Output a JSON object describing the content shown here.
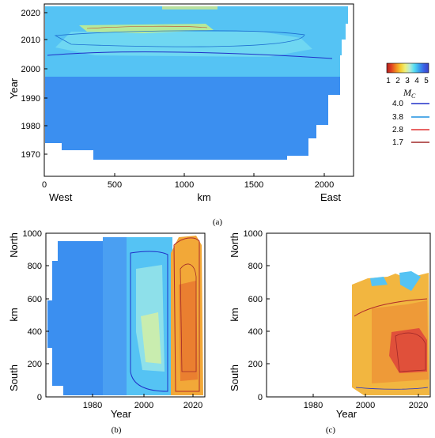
{
  "colorbar": {
    "ticks": [
      "1",
      "2",
      "3",
      "4",
      "5"
    ],
    "title_main": "M",
    "title_sub": "C",
    "stops": [
      "#b02020",
      "#e04020",
      "#f08a20",
      "#f6cc30",
      "#ecf07a",
      "#b6ecd6",
      "#52dcf2",
      "#3aa0ee",
      "#3a64e6",
      "#3c40c8"
    ]
  },
  "contour_legend": [
    {
      "label": "4.0",
      "color": "#2030c8"
    },
    {
      "label": "3.8",
      "color": "#1e90e0"
    },
    {
      "label": "2.8",
      "color": "#e03030"
    },
    {
      "label": "1.7",
      "color": "#a02828"
    }
  ],
  "chart_data": [
    {
      "type": "heatmap",
      "caption": "(a)",
      "xlabel": "km",
      "ylabel": "Year",
      "x_ticks": [
        "0",
        "500",
        "1000",
        "1500",
        "2000"
      ],
      "y_ticks": [
        "1970",
        "1980",
        "1990",
        "2000",
        "2010",
        "2020"
      ],
      "xlim": [
        0,
        2200
      ],
      "ylim": [
        1962,
        2024
      ],
      "annotations": [
        "West",
        "East"
      ],
      "color_encodes": "Mc",
      "regions": [
        {
          "x": [
            0,
            2200
          ],
          "y": [
            1967,
            1997
          ],
          "mc": 4.5
        },
        {
          "x": [
            0,
            2200
          ],
          "y": [
            1997,
            2024
          ],
          "mc": 3.9
        },
        {
          "x": [
            300,
            1600
          ],
          "y": [
            2003,
            2013
          ],
          "mc": 3.6
        },
        {
          "x": [
            250,
            900
          ],
          "y": [
            2008,
            2011
          ],
          "mc": 2.8
        }
      ]
    },
    {
      "type": "heatmap",
      "caption": "(b)",
      "xlabel": "Year",
      "ylabel": "km",
      "x_ticks": [
        "1980",
        "2000",
        "2020"
      ],
      "y_ticks": [
        "0",
        "200",
        "400",
        "600",
        "800",
        "1000"
      ],
      "xlim": [
        1962,
        2025
      ],
      "ylim": [
        0,
        1000
      ],
      "annotations": [
        "North",
        "South"
      ],
      "color_encodes": "Mc",
      "regions": [
        {
          "x": [
            1966,
            1996
          ],
          "y": [
            0,
            1000
          ],
          "mc": 4.4
        },
        {
          "x": [
            1996,
            2012
          ],
          "y": [
            0,
            1000
          ],
          "mc": 3.9
        },
        {
          "x": [
            2001,
            2008
          ],
          "y": [
            100,
            560
          ],
          "mc": 3.4
        },
        {
          "x": [
            2012,
            2025
          ],
          "y": [
            0,
            970
          ],
          "mc": 2.4
        },
        {
          "x": [
            2015,
            2022
          ],
          "y": [
            150,
            700
          ],
          "mc": 2.2
        }
      ]
    },
    {
      "type": "heatmap",
      "caption": "(c)",
      "xlabel": "Year",
      "ylabel": "km",
      "x_ticks": [
        "1980",
        "2000",
        "2020"
      ],
      "y_ticks": [
        "0",
        "200",
        "400",
        "600",
        "800",
        "1000"
      ],
      "xlim": [
        1962,
        2025
      ],
      "ylim": [
        0,
        1000
      ],
      "annotations": [
        "North",
        "South"
      ],
      "color_encodes": "Mc",
      "regions": [
        {
          "x": [
            1996,
            2025
          ],
          "y": [
            0,
            750
          ],
          "mc": 2.6
        },
        {
          "x": [
            2015,
            2024
          ],
          "y": [
            120,
            400
          ],
          "mc": 1.8
        },
        {
          "x": [
            2005,
            2012
          ],
          "y": [
            600,
            720
          ],
          "mc": 3.9
        },
        {
          "x": [
            2018,
            2025
          ],
          "y": [
            600,
            770
          ],
          "mc": 4.0
        }
      ]
    }
  ]
}
